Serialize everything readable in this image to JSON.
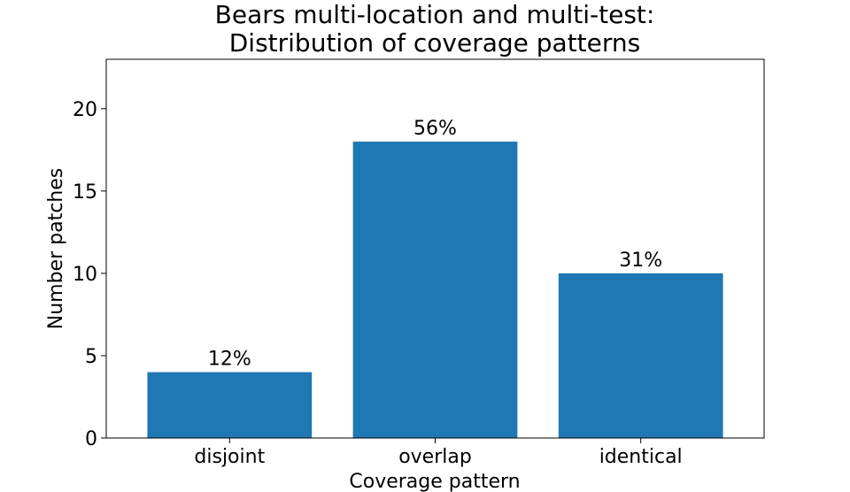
{
  "chart_data": {
    "type": "bar",
    "title_lines": [
      "Bears multi-location and multi-test:",
      "Distribution of coverage patterns"
    ],
    "xlabel": "Coverage pattern",
    "ylabel": "Number patches",
    "categories": [
      "disjoint",
      "overlap",
      "identical"
    ],
    "values": [
      4,
      18,
      10
    ],
    "data_labels": [
      "12%",
      "56%",
      "31%"
    ],
    "ylim": [
      0,
      23
    ],
    "yticks": [
      0,
      5,
      10,
      15,
      20
    ],
    "grid": false,
    "bar_color": "#1f77b4"
  }
}
